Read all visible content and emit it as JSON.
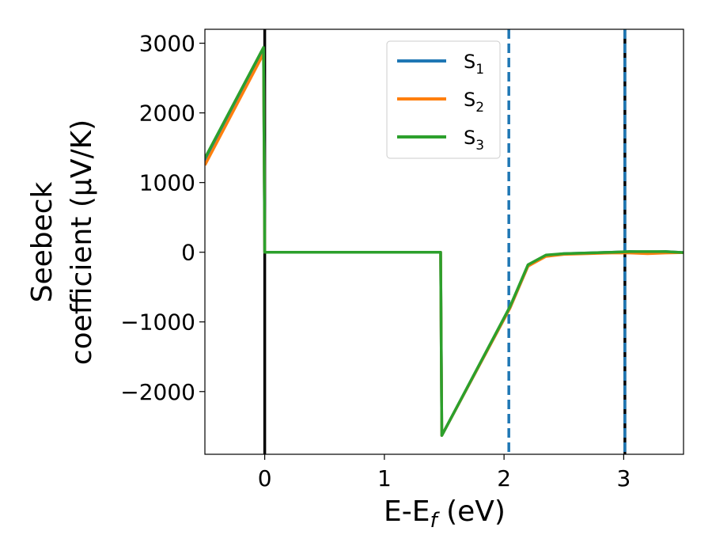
{
  "chart_data": {
    "type": "line",
    "xlabel": "E-E",
    "xlabel_sub": "f",
    "xlabel_suffix": " (eV)",
    "ylabel_line1": "Seebeck",
    "ylabel_line2": "coefficient  (μV/K)",
    "xlim": [
      -0.5,
      3.5
    ],
    "ylim": [
      -2900,
      3200
    ],
    "xticks": [
      0,
      1,
      2,
      3
    ],
    "xtick_labels": [
      "0",
      "1",
      "2",
      "3"
    ],
    "yticks": [
      3000,
      2000,
      1000,
      0,
      -1000,
      -2000
    ],
    "ytick_labels": [
      "3000",
      "2000",
      "1000",
      "0",
      "−1000",
      "−2000"
    ],
    "grid": false,
    "legend_position": "top-center",
    "series": [
      {
        "name": "S",
        "sub": "1",
        "color": "#1f77b4",
        "x": [
          -0.5,
          -0.01,
          0.0,
          1.47,
          1.48,
          2.05,
          2.2,
          2.35,
          2.5,
          2.7,
          2.9,
          3.05,
          3.2,
          3.35,
          3.5
        ],
        "y": [
          1300,
          2900,
          0,
          0,
          -2630,
          -800,
          -200,
          -50,
          -20,
          -10,
          0,
          10,
          0,
          10,
          -5
        ]
      },
      {
        "name": "S",
        "sub": "2",
        "color": "#ff7f0e",
        "x": [
          -0.5,
          -0.01,
          0.0,
          1.47,
          1.48,
          2.05,
          2.2,
          2.35,
          2.5,
          2.7,
          2.9,
          3.05,
          3.2,
          3.35,
          3.5
        ],
        "y": [
          1250,
          2850,
          0,
          0,
          -2630,
          -800,
          -200,
          -60,
          -30,
          -20,
          -10,
          -10,
          -20,
          -10,
          -5
        ]
      },
      {
        "name": "S",
        "sub": "3",
        "color": "#2ca02c",
        "x": [
          -0.5,
          -0.01,
          0.0,
          1.47,
          1.48,
          2.05,
          2.2,
          2.35,
          2.5,
          2.7,
          2.9,
          3.05,
          3.2,
          3.35,
          3.5
        ],
        "y": [
          1350,
          2940,
          0,
          0,
          -2630,
          -780,
          -180,
          -40,
          -20,
          -10,
          0,
          10,
          10,
          10,
          -5
        ]
      }
    ],
    "vlines": [
      {
        "x": 0,
        "color": "#000000",
        "style": "solid"
      },
      {
        "x": 2.04,
        "color": "#1f77b4",
        "style": "dashed"
      },
      {
        "x": 3.01,
        "color": "#000000",
        "style": "solid"
      },
      {
        "x": 3.01,
        "color": "#1f77b4",
        "style": "dashed"
      }
    ]
  }
}
